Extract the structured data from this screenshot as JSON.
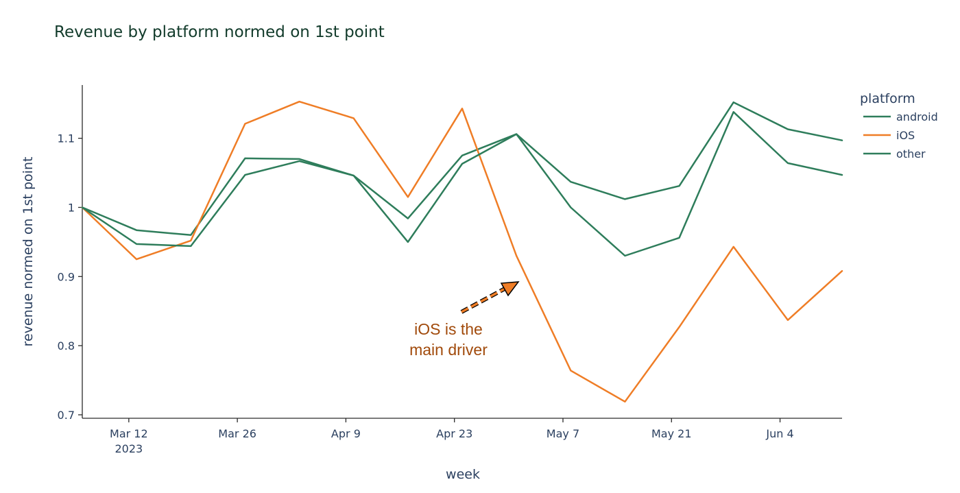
{
  "chart_data": {
    "type": "line",
    "title": "Revenue by platform normed on 1st point",
    "xlabel": "week",
    "ylabel": "revenue normed on 1st point",
    "x": [
      "2023-03-06",
      "2023-03-13",
      "2023-03-20",
      "2023-03-27",
      "2023-04-03",
      "2023-04-10",
      "2023-04-17",
      "2023-04-24",
      "2023-05-01",
      "2023-05-08",
      "2023-05-15",
      "2023-05-22",
      "2023-05-29",
      "2023-06-05",
      "2023-06-12"
    ],
    "x_range": [
      "2023-03-06",
      "2023-06-12"
    ],
    "x_ticks": [
      {
        "date": "2023-03-12",
        "label": "Mar 12",
        "sublabel": "2023"
      },
      {
        "date": "2023-03-26",
        "label": "Mar 26",
        "sublabel": ""
      },
      {
        "date": "2023-04-09",
        "label": "Apr 9",
        "sublabel": ""
      },
      {
        "date": "2023-04-23",
        "label": "Apr 23",
        "sublabel": ""
      },
      {
        "date": "2023-05-07",
        "label": "May 7",
        "sublabel": ""
      },
      {
        "date": "2023-05-21",
        "label": "May 21",
        "sublabel": ""
      },
      {
        "date": "2023-06-04",
        "label": "Jun 4",
        "sublabel": ""
      }
    ],
    "ylim": [
      0.695,
      1.177
    ],
    "y_ticks": [
      {
        "value": 0.7,
        "label": "0.7"
      },
      {
        "value": 0.8,
        "label": "0.8"
      },
      {
        "value": 0.9,
        "label": "0.9"
      },
      {
        "value": 1.0,
        "label": "1"
      },
      {
        "value": 1.1,
        "label": "1.1"
      }
    ],
    "legend_title": "platform",
    "legend_position": "top-right",
    "grid": false,
    "series": [
      {
        "name": "android",
        "color": "#2e7d5b",
        "values": [
          1.0,
          0.967,
          0.96,
          1.071,
          1.07,
          1.046,
          0.984,
          1.075,
          1.106,
          1.037,
          1.012,
          1.031,
          1.152,
          1.113,
          1.097
        ]
      },
      {
        "name": "iOS",
        "color": "#ef7d26",
        "values": [
          1.0,
          0.925,
          0.952,
          1.121,
          1.153,
          1.129,
          1.015,
          1.143,
          0.93,
          0.764,
          0.719,
          0.827,
          0.943,
          0.837,
          0.908
        ]
      },
      {
        "name": "other",
        "color": "#2e7d5b",
        "values": [
          1.0,
          0.947,
          0.944,
          1.047,
          1.067,
          1.046,
          0.95,
          1.063,
          1.106,
          1.0,
          0.93,
          0.956,
          1.138,
          1.064,
          1.047
        ]
      }
    ],
    "annotation": {
      "lines": [
        "iOS is the",
        "main driver"
      ],
      "color": "#a14a0b",
      "arrow_color": "#ef7d26"
    }
  }
}
